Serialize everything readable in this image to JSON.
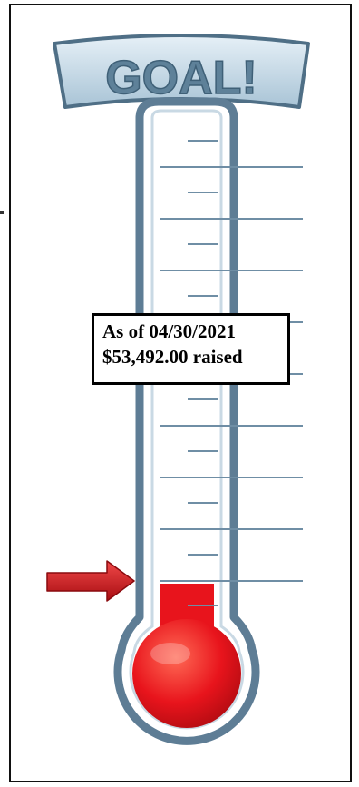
{
  "banner": {
    "text": "GOAL!"
  },
  "caption": {
    "line1": "As of 04/30/2021",
    "line2": "$53,492.00 raised"
  },
  "progress": {
    "fraction_filled": 0.0
  },
  "colors": {
    "banner_face": "#c6dcea",
    "banner_text": "#5e8199",
    "tube_outline": "#5e7d95",
    "tick": "#6f8ea5",
    "mercury": "#e8141c",
    "arrow": "#d6151c"
  },
  "icons": {
    "pointer": "right-arrow-icon"
  }
}
